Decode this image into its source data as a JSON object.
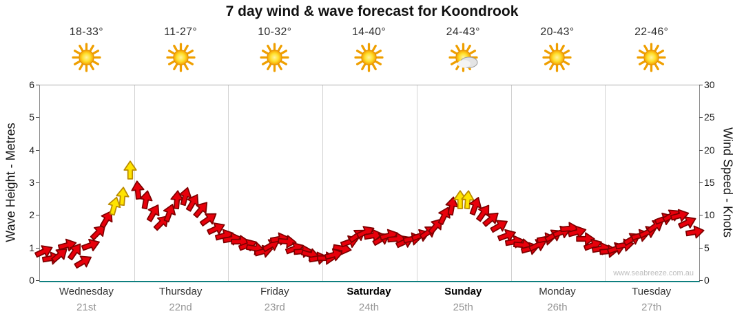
{
  "title": "7 day wind & wave forecast for Koondrook",
  "watermark": "www.seabreeze.com.au",
  "header": {
    "temps": [
      "18-33°",
      "11-27°",
      "10-32°",
      "14-40°",
      "24-43°",
      "20-43°",
      "22-46°"
    ],
    "icons": [
      "sun",
      "sun",
      "sun",
      "sun",
      "sun-cloud",
      "sun",
      "sun"
    ]
  },
  "days": [
    {
      "name": "Wednesday",
      "date": "21st",
      "bold": false
    },
    {
      "name": "Thursday",
      "date": "22nd",
      "bold": false
    },
    {
      "name": "Friday",
      "date": "23rd",
      "bold": false
    },
    {
      "name": "Saturday",
      "date": "24th",
      "bold": true
    },
    {
      "name": "Sunday",
      "date": "25th",
      "bold": true
    },
    {
      "name": "Monday",
      "date": "26th",
      "bold": false
    },
    {
      "name": "Tuesday",
      "date": "27th",
      "bold": false
    }
  ],
  "axes": {
    "left_title": "Wave Height - Metres",
    "right_title": "Wind Speed - Knots",
    "left_ticks": [
      0,
      1,
      2,
      3,
      4,
      5,
      6
    ],
    "right_ticks": [
      0,
      5,
      10,
      15,
      20,
      25,
      30
    ],
    "left_max": 6,
    "right_max": 30
  },
  "palette": {
    "arrow_red": "#e8000b",
    "arrow_red_border": "#7e0000",
    "arrow_yellow": "#ffe400",
    "arrow_yellow_border": "#b98a00",
    "baseline_teal": "#0f7f7f",
    "day_separator": "#d2d2d2",
    "sun_core": "#ffdf2b",
    "sun_edge": "#f59d00",
    "cloud_gray": "#e4e4e4"
  },
  "chart_data": {
    "type": "scatter",
    "marker": "wind-direction-arrow",
    "title": "7 day wind & wave forecast for Koondrook",
    "categories": [
      "Wednesday 21st",
      "Thursday 22nd",
      "Friday 23rd",
      "Saturday 24th",
      "Sunday 25th",
      "Monday 26th",
      "Tuesday 27th"
    ],
    "ylabel_left": "Wave Height - Metres",
    "ylabel_right": "Wind Speed - Knots",
    "ylim_left": [
      0,
      6
    ],
    "ylim_right": [
      0,
      30
    ],
    "grid": "vertical day separators only",
    "legend": "none",
    "points_per_day": 12,
    "series": [
      {
        "name": "Wind speed (knots, estimated from arrow heights)",
        "values": [
          4.5,
          3.5,
          4,
          5.5,
          4.5,
          3,
          5.5,
          7.5,
          9.5,
          11.5,
          13,
          17,
          14,
          12.5,
          10.5,
          9,
          10.5,
          12.5,
          13,
          12,
          11,
          9.5,
          8,
          7,
          6.5,
          6,
          5.5,
          5,
          4.5,
          5.5,
          6.5,
          6,
          5,
          4.5,
          4,
          3.5,
          3.5,
          4,
          5,
          6,
          7,
          7.5,
          7,
          6.5,
          7,
          6.5,
          6,
          6.5,
          7,
          7.5,
          8.5,
          10,
          11.5,
          12.5,
          12.5,
          11.5,
          10.5,
          9.5,
          8.5,
          7,
          6,
          5.5,
          5,
          5.5,
          6.5,
          7,
          7.5,
          8,
          7.5,
          6.5,
          5.5,
          5,
          4.5,
          5,
          5.5,
          6.5,
          7,
          7.5,
          8.5,
          9.5,
          10,
          10,
          9,
          7.5
        ]
      }
    ],
    "wind_dir_deg": [
      25,
      10,
      40,
      15,
      55,
      30,
      20,
      45,
      60,
      75,
      85,
      90,
      95,
      80,
      60,
      45,
      70,
      85,
      75,
      60,
      50,
      35,
      25,
      15,
      10,
      0,
      20,
      -10,
      15,
      30,
      10,
      -5,
      20,
      5,
      -15,
      10,
      0,
      15,
      -10,
      20,
      35,
      25,
      10,
      30,
      15,
      5,
      25,
      10,
      20,
      35,
      50,
      65,
      80,
      90,
      85,
      70,
      55,
      40,
      30,
      20,
      10,
      -5,
      15,
      25,
      10,
      30,
      20,
      5,
      15,
      0,
      20,
      10,
      5,
      20,
      10,
      30,
      15,
      25,
      35,
      20,
      30,
      15,
      25,
      10
    ],
    "arrow_color_flags": [
      "r",
      "r",
      "r",
      "r",
      "r",
      "r",
      "r",
      "r",
      "r",
      "y",
      "y",
      "y",
      "r",
      "r",
      "r",
      "r",
      "r",
      "r",
      "r",
      "r",
      "r",
      "r",
      "r",
      "r",
      "r",
      "r",
      "r",
      "r",
      "r",
      "r",
      "r",
      "r",
      "r",
      "r",
      "r",
      "r",
      "r",
      "r",
      "r",
      "r",
      "r",
      "r",
      "r",
      "r",
      "r",
      "r",
      "r",
      "r",
      "r",
      "r",
      "r",
      "r",
      "r",
      "y",
      "y",
      "r",
      "r",
      "r",
      "r",
      "r",
      "r",
      "r",
      "r",
      "r",
      "r",
      "r",
      "r",
      "r",
      "r",
      "r",
      "r",
      "r",
      "r",
      "r",
      "r",
      "r",
      "r",
      "r",
      "r",
      "r",
      "r",
      "r",
      "r",
      "r"
    ]
  }
}
